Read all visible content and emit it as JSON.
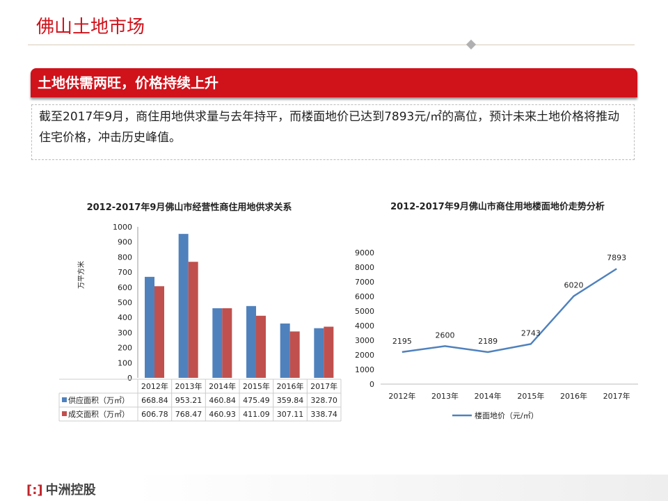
{
  "header": {
    "title": "佛山土地市场"
  },
  "banner": {
    "text": "土地供需两旺，价格持续上升"
  },
  "summary": {
    "text": "截至2017年9月，商住用地供求量与去年持平，而楼面地价已达到7893元/㎡的高位，预计未来土地价格将推动住宅价格，冲击历史峰值。"
  },
  "footer": {
    "logo": "中洲控股"
  },
  "colors": {
    "red": "#d0121b",
    "supply": "#4f81bd",
    "deal": "#c0504d",
    "line": "#4f81bd"
  },
  "chart_data": [
    {
      "type": "bar",
      "title": "2012-2017年9月佛山市经营性商住用地供求关系",
      "ylabel": "万平方米",
      "ylim": [
        0,
        1000
      ],
      "yticks": [
        0,
        100,
        200,
        300,
        400,
        500,
        600,
        700,
        800,
        900,
        1000
      ],
      "categories": [
        "2012年",
        "2013年",
        "2014年",
        "2015年",
        "2016年",
        "2017年"
      ],
      "series": [
        {
          "name": "供应面积（万㎡）",
          "values": [
            668.84,
            953.21,
            460.84,
            475.49,
            359.84,
            328.7
          ],
          "labels": [
            "668.84",
            "953.21",
            "460.84",
            "475.49",
            "359.84",
            "328.70"
          ]
        },
        {
          "name": "成交面积（万㎡）",
          "values": [
            606.78,
            768.47,
            460.93,
            411.09,
            307.11,
            338.74
          ],
          "labels": [
            "606.78",
            "768.47",
            "460.93",
            "411.09",
            "307.11",
            "338.74"
          ]
        }
      ],
      "legend": "data-table"
    },
    {
      "type": "line",
      "title": "2012-2017年9月佛山市商住用地楼面地价走势分析",
      "ylim": [
        0,
        9000
      ],
      "yticks": [
        0,
        1000,
        2000,
        3000,
        4000,
        5000,
        6000,
        7000,
        8000,
        9000
      ],
      "categories": [
        "2012年",
        "2013年",
        "2014年",
        "2015年",
        "2016年",
        "2017年"
      ],
      "series": [
        {
          "name": "楼面地价（元/㎡）",
          "values": [
            2195,
            2600,
            2189,
            2743,
            6020,
            7893
          ]
        }
      ],
      "legend": "bottom"
    }
  ]
}
